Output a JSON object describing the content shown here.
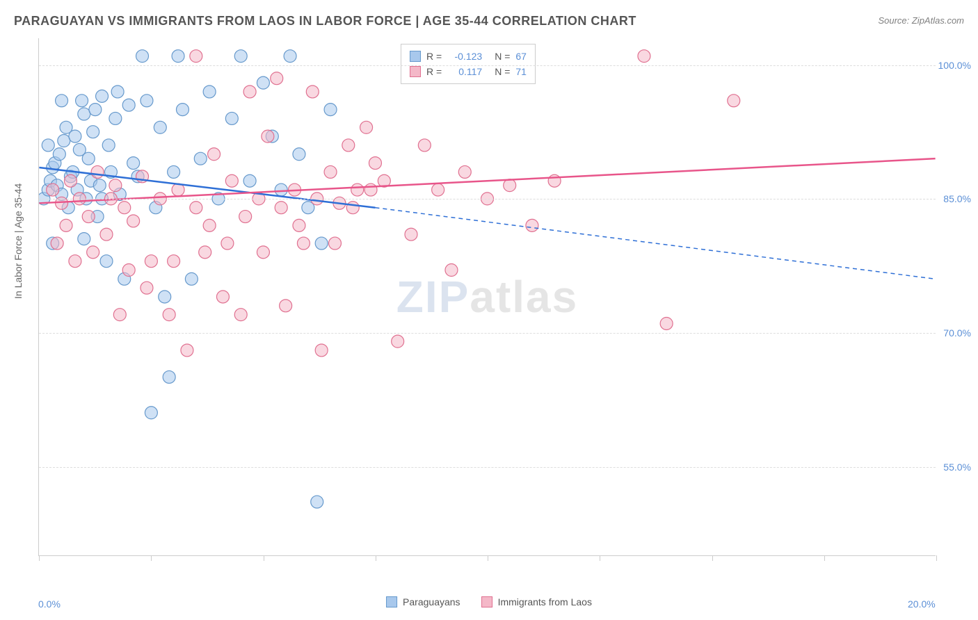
{
  "title": "PARAGUAYAN VS IMMIGRANTS FROM LAOS IN LABOR FORCE | AGE 35-44 CORRELATION CHART",
  "source": "Source: ZipAtlas.com",
  "ylabel": "In Labor Force | Age 35-44",
  "watermark_a": "ZIP",
  "watermark_b": "atlas",
  "chart": {
    "type": "scatter-correlation",
    "xlim": [
      0,
      20
    ],
    "ylim": [
      45,
      103
    ],
    "xtick_positions": [
      0,
      2.5,
      5,
      7.5,
      10,
      12.5,
      15,
      17.5,
      20
    ],
    "xtick_labels": {
      "0": "0.0%",
      "20": "20.0%"
    },
    "ytick_positions": [
      55,
      70,
      85,
      100
    ],
    "ytick_labels": {
      "55": "55.0%",
      "70": "70.0%",
      "85": "85.0%",
      "100": "100.0%"
    },
    "background_color": "#ffffff",
    "grid_color": "#dddddd",
    "series": [
      {
        "id": "paraguayans",
        "label": "Paraguayans",
        "color_fill": "#a8c8ec",
        "color_stroke": "#6699cc",
        "marker_radius": 9,
        "marker_opacity": 0.55,
        "R": "-0.123",
        "N": "67",
        "trend": {
          "x1": 0,
          "y1": 88.5,
          "x2": 7.5,
          "y2": 84,
          "solid_until_x": 7.5,
          "dash_to_x": 20,
          "dash_y2": 76,
          "color": "#2e6fd6",
          "width": 2.5
        },
        "points": [
          [
            0.1,
            85
          ],
          [
            0.2,
            86
          ],
          [
            0.25,
            87
          ],
          [
            0.3,
            88.5
          ],
          [
            0.35,
            89
          ],
          [
            0.4,
            86.5
          ],
          [
            0.45,
            90
          ],
          [
            0.5,
            85.5
          ],
          [
            0.55,
            91.5
          ],
          [
            0.6,
            93
          ],
          [
            0.65,
            84
          ],
          [
            0.7,
            87.5
          ],
          [
            0.75,
            88
          ],
          [
            0.8,
            92
          ],
          [
            0.85,
            86
          ],
          [
            0.9,
            90.5
          ],
          [
            0.95,
            96
          ],
          [
            1.0,
            94.5
          ],
          [
            1.05,
            85
          ],
          [
            1.1,
            89.5
          ],
          [
            1.15,
            87
          ],
          [
            1.2,
            92.5
          ],
          [
            1.25,
            95
          ],
          [
            1.3,
            83
          ],
          [
            1.35,
            86.5
          ],
          [
            1.4,
            96.5
          ],
          [
            1.5,
            78
          ],
          [
            1.55,
            91
          ],
          [
            1.6,
            88
          ],
          [
            1.7,
            94
          ],
          [
            1.75,
            97
          ],
          [
            1.8,
            85.5
          ],
          [
            1.9,
            76
          ],
          [
            2.0,
            95.5
          ],
          [
            2.1,
            89
          ],
          [
            2.2,
            87.5
          ],
          [
            2.3,
            101
          ],
          [
            2.4,
            96
          ],
          [
            2.5,
            61
          ],
          [
            2.6,
            84
          ],
          [
            2.7,
            93
          ],
          [
            2.8,
            74
          ],
          [
            2.9,
            65
          ],
          [
            3.0,
            88
          ],
          [
            3.1,
            101
          ],
          [
            3.2,
            95
          ],
          [
            3.4,
            76
          ],
          [
            3.6,
            89.5
          ],
          [
            3.8,
            97
          ],
          [
            4.0,
            85
          ],
          [
            4.3,
            94
          ],
          [
            4.5,
            101
          ],
          [
            4.7,
            87
          ],
          [
            5.0,
            98
          ],
          [
            5.2,
            92
          ],
          [
            5.4,
            86
          ],
          [
            5.6,
            101
          ],
          [
            5.8,
            90
          ],
          [
            6.0,
            84
          ],
          [
            6.2,
            51
          ],
          [
            6.3,
            80
          ],
          [
            6.5,
            95
          ],
          [
            1.0,
            80.5
          ],
          [
            0.3,
            80
          ],
          [
            1.4,
            85
          ],
          [
            0.5,
            96
          ],
          [
            0.2,
            91
          ]
        ]
      },
      {
        "id": "laos",
        "label": "Immigants from Laos",
        "color_fill": "#f4b8c8",
        "color_stroke": "#e07090",
        "marker_radius": 9,
        "marker_opacity": 0.55,
        "R": "0.117",
        "N": "71",
        "trend": {
          "x1": 0,
          "y1": 84.5,
          "x2": 20,
          "y2": 89.5,
          "solid_until_x": 20,
          "dash_to_x": 20,
          "dash_y2": 89.5,
          "color": "#e8558a",
          "width": 2.5
        },
        "points": [
          [
            0.3,
            86
          ],
          [
            0.5,
            84.5
          ],
          [
            0.7,
            87
          ],
          [
            0.9,
            85
          ],
          [
            1.1,
            83
          ],
          [
            1.3,
            88
          ],
          [
            1.5,
            81
          ],
          [
            1.7,
            86.5
          ],
          [
            1.9,
            84
          ],
          [
            2.1,
            82.5
          ],
          [
            2.3,
            87.5
          ],
          [
            2.5,
            78
          ],
          [
            2.7,
            85
          ],
          [
            2.9,
            72
          ],
          [
            3.1,
            86
          ],
          [
            3.3,
            68
          ],
          [
            3.5,
            84
          ],
          [
            3.7,
            79
          ],
          [
            3.9,
            90
          ],
          [
            4.1,
            74
          ],
          [
            4.3,
            87
          ],
          [
            4.5,
            72
          ],
          [
            4.7,
            97
          ],
          [
            4.9,
            85
          ],
          [
            5.1,
            92
          ],
          [
            5.3,
            98.5
          ],
          [
            5.5,
            73
          ],
          [
            5.7,
            86
          ],
          [
            5.9,
            80
          ],
          [
            6.1,
            97
          ],
          [
            6.3,
            68
          ],
          [
            6.5,
            88
          ],
          [
            6.7,
            84.5
          ],
          [
            6.9,
            91
          ],
          [
            7.1,
            86
          ],
          [
            7.3,
            93
          ],
          [
            7.5,
            89
          ],
          [
            7.7,
            87
          ],
          [
            8.0,
            69
          ],
          [
            8.3,
            81
          ],
          [
            8.6,
            91
          ],
          [
            8.9,
            86
          ],
          [
            9.2,
            77
          ],
          [
            9.5,
            88
          ],
          [
            10.0,
            85
          ],
          [
            10.5,
            86.5
          ],
          [
            11.0,
            82
          ],
          [
            11.5,
            87
          ],
          [
            13.5,
            101
          ],
          [
            14.0,
            71
          ],
          [
            15.5,
            96
          ],
          [
            3.5,
            101
          ],
          [
            2.0,
            77
          ],
          [
            1.2,
            79
          ],
          [
            0.8,
            78
          ],
          [
            0.6,
            82
          ],
          [
            0.4,
            80
          ],
          [
            1.8,
            72
          ],
          [
            2.4,
            75
          ],
          [
            3.0,
            78
          ],
          [
            3.8,
            82
          ],
          [
            4.2,
            80
          ],
          [
            4.6,
            83
          ],
          [
            5.0,
            79
          ],
          [
            5.4,
            84
          ],
          [
            5.8,
            82
          ],
          [
            6.2,
            85
          ],
          [
            6.6,
            80
          ],
          [
            7.0,
            84
          ],
          [
            7.4,
            86
          ],
          [
            1.6,
            85
          ]
        ]
      }
    ]
  },
  "legend_bottom": [
    {
      "label": "Paraguayans",
      "fill": "#a8c8ec",
      "stroke": "#6699cc"
    },
    {
      "label": "Immigrants from Laos",
      "fill": "#f4b8c8",
      "stroke": "#e07090"
    }
  ]
}
